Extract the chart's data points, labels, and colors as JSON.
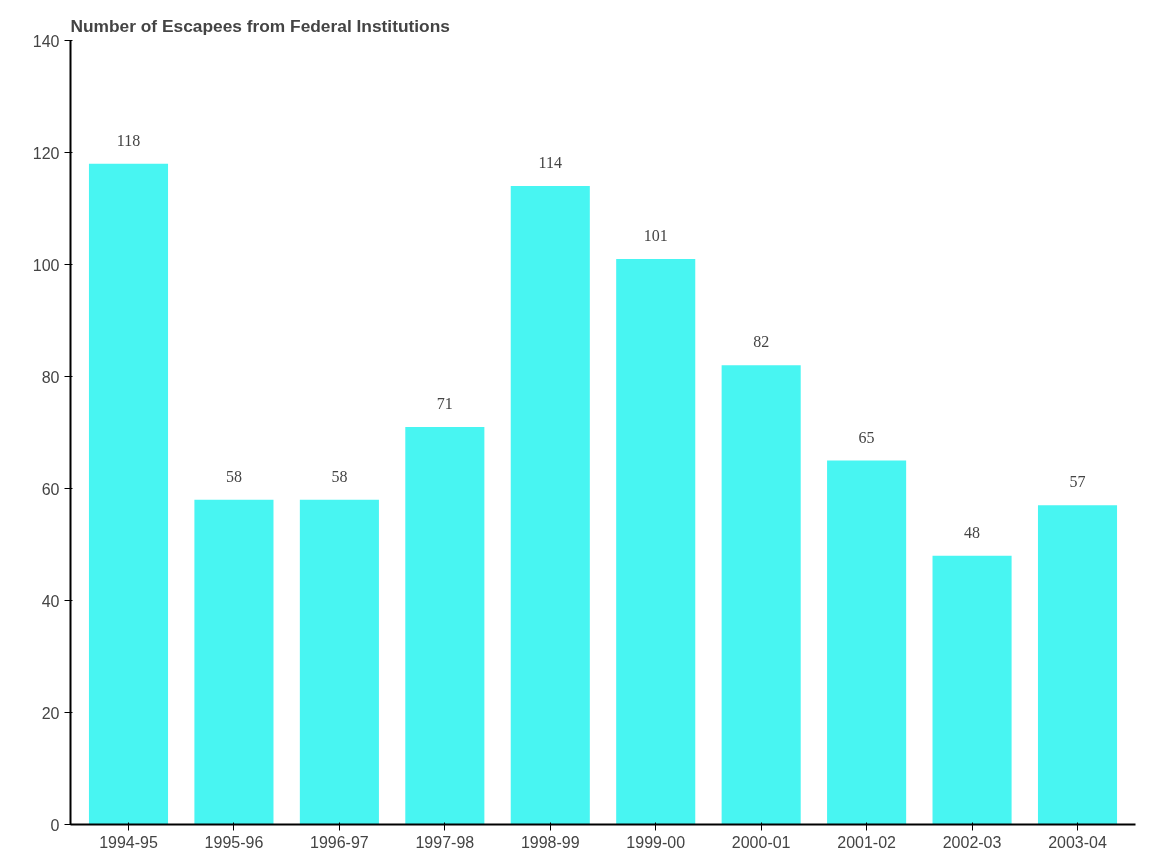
{
  "chart_data": {
    "type": "bar",
    "title": "Number of Escapees from Federal Institutions",
    "categories": [
      "1994-95",
      "1995-96",
      "1996-97",
      "1997-98",
      "1998-99",
      "1999-00",
      "2000-01",
      "2001-02",
      "2002-03",
      "2003-04"
    ],
    "values": [
      118,
      58,
      58,
      71,
      114,
      101,
      82,
      65,
      48,
      57
    ],
    "color": "#48f5f2",
    "ylim": [
      0,
      140
    ],
    "yticks": [
      0,
      20,
      40,
      60,
      80,
      100,
      120,
      140
    ],
    "grid": false,
    "data_labels": true
  }
}
